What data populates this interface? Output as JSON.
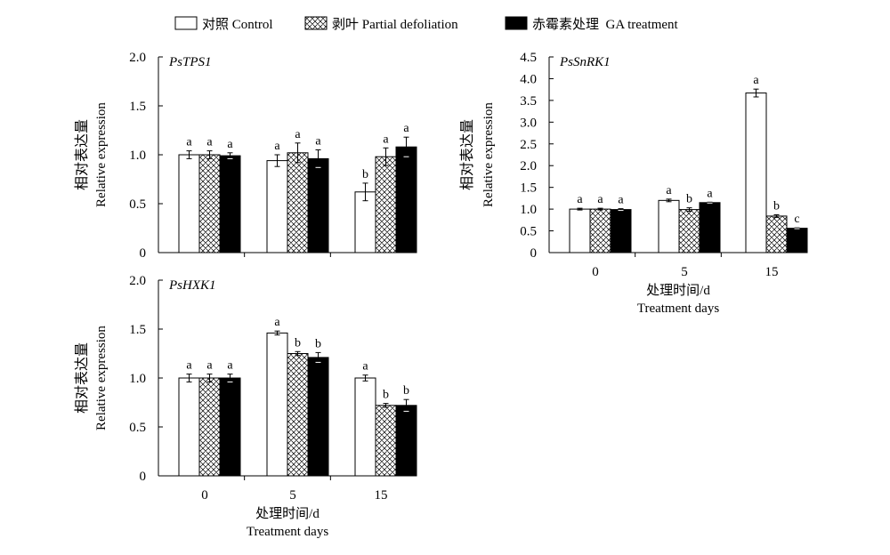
{
  "legend": [
    {
      "label": "对照 Control",
      "fill": "white"
    },
    {
      "label": "剥叶 Partial defoliation",
      "fill": "hatch"
    },
    {
      "label": "赤霉素处理  GA treatment",
      "fill": "black"
    }
  ],
  "chart_data": [
    {
      "type": "bar",
      "title": "PsTPS1",
      "ylabel_cn": "相对表达量",
      "ylabel": "Relative expression",
      "xlabel_cn": "",
      "xlabel": "",
      "categories": [
        "0",
        "5",
        "15"
      ],
      "show_x_tick_labels": false,
      "ylim": [
        0,
        2.0
      ],
      "yticks": [
        "0",
        "0.5",
        "1.0",
        "1.5",
        "2.0"
      ],
      "series": [
        {
          "name": "对照 Control",
          "values": [
            1.0,
            0.94,
            0.62
          ],
          "errors": [
            0.04,
            0.06,
            0.09
          ],
          "letters": [
            "a",
            "a",
            "b"
          ]
        },
        {
          "name": "剥叶 Partial defoliation",
          "values": [
            1.0,
            1.02,
            0.98
          ],
          "errors": [
            0.04,
            0.1,
            0.09
          ],
          "letters": [
            "a",
            "a",
            "a"
          ]
        },
        {
          "name": "赤霉素处理  GA treatment",
          "values": [
            0.99,
            0.96,
            1.08
          ],
          "errors": [
            0.03,
            0.09,
            0.1
          ],
          "letters": [
            "a",
            "a",
            "a"
          ]
        }
      ]
    },
    {
      "type": "bar",
      "title": "PsHXK1",
      "ylabel_cn": "相对表达量",
      "ylabel": "Relative expression",
      "xlabel_cn": "处理时间/d",
      "xlabel": "Treatment days",
      "categories": [
        "0",
        "5",
        "15"
      ],
      "show_x_tick_labels": true,
      "ylim": [
        0,
        2.0
      ],
      "yticks": [
        "0",
        "0.5",
        "1.0",
        "1.5",
        "2.0"
      ],
      "series": [
        {
          "name": "对照 Control",
          "values": [
            1.0,
            1.46,
            1.0
          ],
          "errors": [
            0.04,
            0.02,
            0.03
          ],
          "letters": [
            "a",
            "a",
            "a"
          ]
        },
        {
          "name": "剥叶 Partial defoliation",
          "values": [
            1.0,
            1.25,
            0.72
          ],
          "errors": [
            0.04,
            0.02,
            0.02
          ],
          "letters": [
            "a",
            "b",
            "b"
          ]
        },
        {
          "name": "赤霉素处理  GA treatment",
          "values": [
            1.0,
            1.21,
            0.72
          ],
          "errors": [
            0.04,
            0.05,
            0.06
          ],
          "letters": [
            "a",
            "b",
            "b"
          ]
        }
      ]
    },
    {
      "type": "bar",
      "title": "PsSnRK1",
      "ylabel_cn": "相对表达量",
      "ylabel": "Relative expression",
      "xlabel_cn": "处理时间/d",
      "xlabel": "Treatment days",
      "categories": [
        "0",
        "5",
        "15"
      ],
      "show_x_tick_labels": true,
      "ylim": [
        0,
        4.5
      ],
      "yticks": [
        "0",
        "0.5",
        "1.0",
        "1.5",
        "2.0",
        "2.5",
        "3.0",
        "3.5",
        "4.0",
        "4.5"
      ],
      "series": [
        {
          "name": "对照 Control",
          "values": [
            1.0,
            1.2,
            3.67
          ],
          "errors": [
            0.02,
            0.03,
            0.09
          ],
          "letters": [
            "a",
            "a",
            "a"
          ]
        },
        {
          "name": "剥叶 Partial defoliation",
          "values": [
            1.0,
            0.99,
            0.84
          ],
          "errors": [
            0.02,
            0.04,
            0.03
          ],
          "letters": [
            "a",
            "b",
            "b"
          ]
        },
        {
          "name": "赤霉素处理  GA treatment",
          "values": [
            0.99,
            1.15,
            0.56
          ],
          "errors": [
            0.02,
            0.01,
            0.01
          ],
          "letters": [
            "a",
            "a",
            "c"
          ]
        }
      ]
    }
  ]
}
